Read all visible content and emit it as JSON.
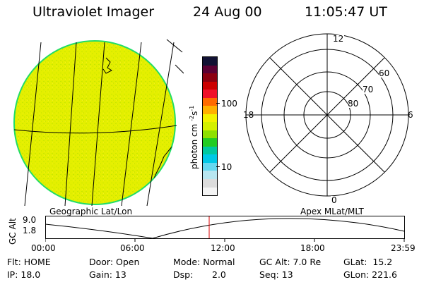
{
  "header": {
    "instrument": "Ultraviolet Imager",
    "date": "24 Aug 00",
    "time": "11:05:47 UT"
  },
  "colorbar": {
    "unit_label": "photon cm",
    "unit_exp1": "-2",
    "unit_mid": "s",
    "unit_exp2": "-1",
    "tick_high": "100",
    "tick_low": "10",
    "colors": [
      "#111133",
      "#5a0033",
      "#8b0010",
      "#cc0000",
      "#f0102a",
      "#ff6a00",
      "#ffb000",
      "#f2f200",
      "#d4f000",
      "#8ee000",
      "#22cc22",
      "#00c8a0",
      "#00c8e6",
      "#66d8f0",
      "#b8e6f0",
      "#dcdcdc",
      "#f4f4f4"
    ]
  },
  "geo_panel": {
    "label": "Geographic Lat/Lon",
    "fill_color": "#e6f000",
    "rim_color": "#22dd66"
  },
  "polar_panel": {
    "label": "Apex MLat/MLT",
    "mlt_top": "12",
    "mlt_left": "18",
    "mlt_right": "6",
    "mlt_bottom": "0",
    "lat_60": "60",
    "lat_70": "70",
    "lat_80": "80"
  },
  "altitude_strip": {
    "axis_label": "GC Alt",
    "y_top": "9.0",
    "y_bottom": "1.8",
    "x_ticks": [
      "00:00",
      "06:00",
      "12:00",
      "18:00",
      "23:59"
    ],
    "current_marker_color": "#dd0000"
  },
  "status": {
    "flt": "Flt: HOME",
    "ip": "IP: 18.0",
    "door": "Door: Open",
    "gain": "Gain: 13",
    "mode": "Mode: Normal",
    "dsp_label": "Dsp:",
    "dsp_value": "2.0",
    "gc_alt": "GC Alt: 7.0 Re",
    "seq": "Seq: 13",
    "glat": "GLat:  15.2",
    "glon": "GLon: 221.6"
  }
}
